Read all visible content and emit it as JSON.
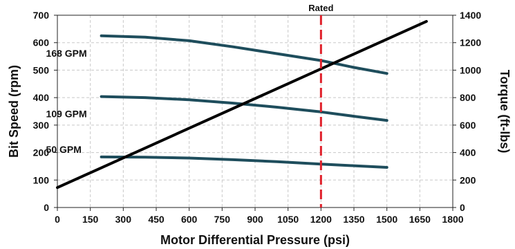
{
  "chart_data": {
    "type": "line",
    "title": "",
    "xlabel": "Motor Differential Pressure (psi)",
    "ylabel": "Bit Speed (rpm)",
    "y2label": "Torque (ft-lbs)",
    "xlim": [
      0,
      1800
    ],
    "ylim": [
      0,
      700
    ],
    "y2lim": [
      0,
      1400
    ],
    "xticks": [
      "0",
      "150",
      "300",
      "450",
      "600",
      "750",
      "900",
      "1050",
      "1200",
      "1350",
      "1500",
      "1650",
      "1800"
    ],
    "yticks": [
      "0",
      "100",
      "200",
      "300",
      "400",
      "500",
      "600",
      "700"
    ],
    "y2ticks": [
      "0",
      "200",
      "400",
      "600",
      "800",
      "1000",
      "1200",
      "1400"
    ],
    "grid": true,
    "legend": "none",
    "series": [
      {
        "name": "168 GPM",
        "axis": "left",
        "color": "#1e4d5c",
        "points": [
          [
            200,
            625
          ],
          [
            400,
            620
          ],
          [
            600,
            607
          ],
          [
            800,
            585
          ],
          [
            1000,
            560
          ],
          [
            1200,
            535
          ],
          [
            1350,
            510
          ],
          [
            1500,
            488
          ]
        ]
      },
      {
        "name": "109 GPM",
        "axis": "left",
        "color": "#1e4d5c",
        "points": [
          [
            200,
            404
          ],
          [
            400,
            400
          ],
          [
            600,
            392
          ],
          [
            800,
            380
          ],
          [
            1000,
            365
          ],
          [
            1200,
            348
          ],
          [
            1350,
            332
          ],
          [
            1500,
            317
          ]
        ]
      },
      {
        "name": "50 GPM",
        "axis": "left",
        "color": "#1e4d5c",
        "points": [
          [
            200,
            184
          ],
          [
            400,
            183
          ],
          [
            600,
            180
          ],
          [
            800,
            174
          ],
          [
            1000,
            167
          ],
          [
            1200,
            158
          ],
          [
            1350,
            152
          ],
          [
            1500,
            146
          ]
        ]
      },
      {
        "name": "",
        "axis": "right",
        "color": "#000000",
        "points": [
          [
            0,
            145
          ],
          [
            1680,
            1355
          ]
        ]
      }
    ],
    "annotations": [
      {
        "text": "Rated",
        "x": 1200,
        "color": "#e0202a",
        "style": "dashed-vertical-line"
      }
    ]
  }
}
